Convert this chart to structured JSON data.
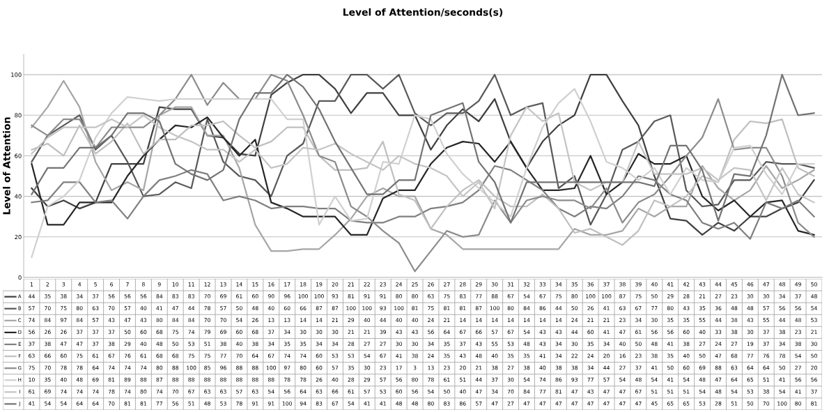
{
  "chart_data": {
    "type": "line",
    "title": "Level of Attention/seconds(s)",
    "ylabel": "Level of Attention",
    "categories": [
      "1",
      "2",
      "3",
      "4",
      "5",
      "6",
      "7",
      "8",
      "9",
      "10",
      "11",
      "12",
      "13",
      "14",
      "15",
      "16",
      "17",
      "18",
      "19",
      "20",
      "21",
      "22",
      "23",
      "24",
      "25",
      "26",
      "27",
      "28",
      "29",
      "30",
      "31",
      "32",
      "33",
      "34",
      "35",
      "36",
      "37",
      "38",
      "39",
      "40",
      "41",
      "42",
      "43",
      "44",
      "45",
      "46",
      "47",
      "48",
      "49",
      "50"
    ],
    "series": [
      {
        "name": "A",
        "color": "#404040",
        "values": [
          44,
          35,
          38,
          34,
          37,
          56,
          56,
          56,
          84,
          83,
          83,
          70,
          69,
          61,
          60,
          90,
          96,
          100,
          100,
          93,
          81,
          91,
          91,
          80,
          80,
          63,
          75,
          83,
          77,
          88,
          67,
          54,
          67,
          75,
          80,
          100,
          100,
          87,
          75,
          50,
          29,
          28,
          21,
          27,
          23,
          30,
          30,
          34,
          37,
          48
        ]
      },
      {
        "name": "B",
        "color": "#595959",
        "values": [
          57,
          70,
          75,
          80,
          63,
          70,
          57,
          40,
          41,
          47,
          44,
          78,
          57,
          50,
          48,
          40,
          60,
          66,
          87,
          87,
          100,
          100,
          93,
          100,
          81,
          75,
          81,
          81,
          87,
          100,
          80,
          84,
          86,
          44,
          50,
          26,
          41,
          63,
          67,
          77,
          80,
          43,
          35,
          36,
          48,
          48,
          57,
          56,
          56,
          54
        ]
      },
      {
        "name": "C",
        "color": "#a6a6a6",
        "values": [
          74,
          84,
          97,
          84,
          57,
          43,
          47,
          43,
          80,
          84,
          84,
          70,
          70,
          54,
          26,
          13,
          13,
          14,
          14,
          21,
          29,
          40,
          44,
          40,
          40,
          24,
          21,
          14,
          14,
          14,
          14,
          14,
          14,
          14,
          24,
          21,
          21,
          23,
          34,
          30,
          35,
          35,
          55,
          44,
          38,
          43,
          55,
          44,
          48,
          53
        ]
      },
      {
        "name": "D",
        "color": "#262626",
        "values": [
          56,
          26,
          26,
          37,
          37,
          37,
          50,
          60,
          68,
          75,
          74,
          79,
          69,
          60,
          68,
          37,
          34,
          30,
          30,
          30,
          21,
          21,
          39,
          43,
          43,
          56,
          64,
          67,
          66,
          57,
          67,
          54,
          43,
          43,
          44,
          60,
          41,
          47,
          61,
          56,
          56,
          60,
          40,
          33,
          38,
          30,
          37,
          38,
          23,
          21
        ]
      },
      {
        "name": "E",
        "color": "#7f7f7f",
        "values": [
          37,
          38,
          47,
          47,
          37,
          38,
          29,
          40,
          48,
          50,
          53,
          51,
          38,
          40,
          38,
          34,
          35,
          35,
          34,
          34,
          28,
          27,
          27,
          30,
          30,
          34,
          35,
          37,
          43,
          55,
          53,
          48,
          43,
          34,
          30,
          35,
          34,
          40,
          50,
          48,
          41,
          38,
          27,
          24,
          27,
          19,
          37,
          34,
          38,
          30
        ]
      },
      {
        "name": "F",
        "color": "#bfbfbf",
        "values": [
          63,
          66,
          60,
          75,
          61,
          67,
          76,
          61,
          68,
          68,
          75,
          75,
          77,
          70,
          64,
          67,
          74,
          74,
          60,
          53,
          53,
          54,
          67,
          41,
          38,
          24,
          35,
          43,
          48,
          40,
          35,
          35,
          41,
          34,
          22,
          24,
          20,
          16,
          23,
          38,
          35,
          40,
          50,
          47,
          68,
          77,
          76,
          78,
          54,
          50
        ]
      },
      {
        "name": "G",
        "color": "#8c8c8c",
        "values": [
          75,
          70,
          78,
          78,
          64,
          74,
          74,
          74,
          80,
          88,
          100,
          85,
          96,
          88,
          88,
          100,
          97,
          80,
          60,
          57,
          35,
          30,
          23,
          17,
          3,
          13,
          23,
          20,
          21,
          38,
          27,
          38,
          40,
          38,
          38,
          34,
          44,
          27,
          37,
          41,
          50,
          60,
          69,
          88,
          63,
          64,
          64,
          50,
          27,
          20
        ]
      },
      {
        "name": "H",
        "color": "#d0d0d0",
        "values": [
          10,
          35,
          40,
          48,
          69,
          81,
          89,
          88,
          87,
          88,
          88,
          88,
          88,
          88,
          88,
          88,
          78,
          78,
          26,
          40,
          28,
          29,
          57,
          56,
          80,
          78,
          61,
          51,
          44,
          37,
          30,
          54,
          74,
          86,
          93,
          77,
          57,
          54,
          48,
          54,
          41,
          54,
          48,
          47,
          64,
          65,
          51,
          41,
          56,
          56
        ]
      },
      {
        "name": "I",
        "color": "#c4c4c4",
        "values": [
          61,
          69,
          74,
          74,
          74,
          78,
          74,
          80,
          74,
          70,
          67,
          63,
          63,
          57,
          63,
          54,
          56,
          64,
          63,
          66,
          61,
          57,
          53,
          60,
          56,
          54,
          50,
          40,
          47,
          34,
          70,
          84,
          77,
          81,
          47,
          43,
          47,
          47,
          67,
          51,
          51,
          51,
          54,
          48,
          54,
          53,
          38,
          54,
          41,
          37
        ]
      },
      {
        "name": "J",
        "color": "#737373",
        "values": [
          41,
          54,
          54,
          64,
          64,
          70,
          81,
          81,
          77,
          56,
          51,
          48,
          53,
          78,
          91,
          91,
          100,
          94,
          83,
          67,
          54,
          41,
          41,
          48,
          48,
          80,
          83,
          86,
          57,
          47,
          27,
          47,
          47,
          47,
          47,
          47,
          47,
          47,
          47,
          45,
          65,
          65,
          53,
          28,
          51,
          50,
          70,
          100,
          80,
          81
        ]
      }
    ],
    "ylim": [
      0,
      110
    ],
    "yticks": [
      0,
      20,
      40,
      60,
      80,
      100
    ],
    "grid": "y",
    "legend": "bottom",
    "data_labels": true
  }
}
